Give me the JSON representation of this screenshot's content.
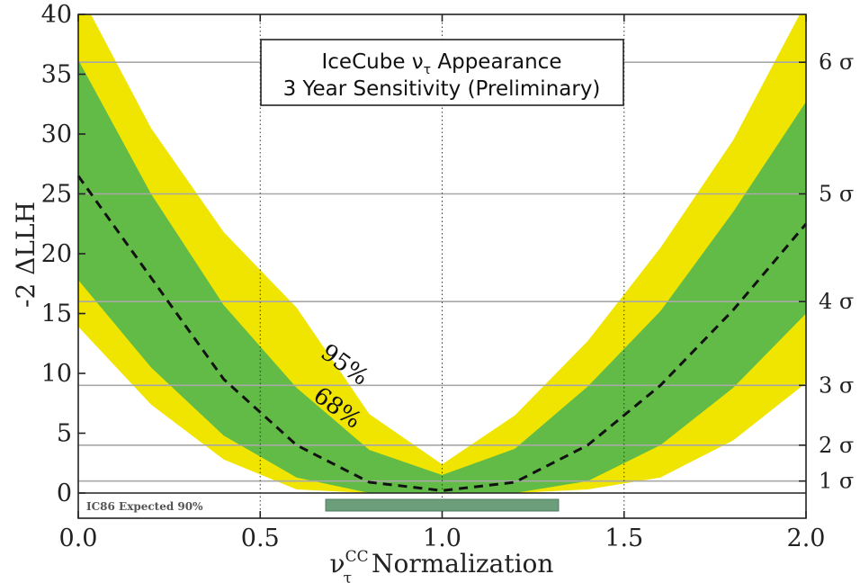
{
  "chart_data": {
    "type": "area",
    "title_line1": "IceCube ν",
    "title_sub": "τ",
    "title_line1_rest": " Appearance",
    "title_line2": "3 Year Sensitivity (Preliminary)",
    "xlabel_main": "ν",
    "xlabel_sup": "CC",
    "xlabel_sub": "τ",
    "xlabel_rest": "Normalization",
    "ylabel": "-2 ΔLLH",
    "xlim": [
      0.0,
      2.0
    ],
    "ylim": [
      0,
      40
    ],
    "xticks": [
      0.0,
      0.5,
      1.0,
      1.5,
      2.0
    ],
    "xtick_labels": [
      "0.0",
      "0.5",
      "1.0",
      "1.5",
      "2.0"
    ],
    "yticks": [
      0,
      5,
      10,
      15,
      20,
      25,
      30,
      35,
      40
    ],
    "ytick_labels": [
      "0",
      "5",
      "10",
      "15",
      "20",
      "25",
      "30",
      "35",
      "40"
    ],
    "vertical_gridlines": [
      0.5,
      1.0,
      1.5
    ],
    "sigma_levels": [
      {
        "value": 1,
        "label": "1 σ"
      },
      {
        "value": 4,
        "label": "2 σ"
      },
      {
        "value": 9,
        "label": "3 σ"
      },
      {
        "value": 16,
        "label": "4 σ"
      },
      {
        "value": 25,
        "label": "5 σ"
      },
      {
        "value": 36,
        "label": "6 σ"
      }
    ],
    "x": [
      0.0,
      0.2,
      0.4,
      0.6,
      0.8,
      1.0,
      1.2,
      1.4,
      1.6,
      1.8,
      2.0
    ],
    "series": [
      {
        "name": "95%",
        "color": "#f0e500",
        "lower": [
          13.9,
          7.4,
          2.8,
          0.3,
          0,
          0,
          0,
          0.3,
          1.3,
          4.4,
          9.2
        ],
        "upper": [
          42,
          30.5,
          21.8,
          15.5,
          6.6,
          2.4,
          6.5,
          12.7,
          20.5,
          29.5,
          41
        ]
      },
      {
        "name": "68%",
        "color": "#62bb46",
        "lower": [
          17.8,
          10.5,
          4.8,
          1.3,
          0,
          0,
          0,
          1.0,
          4.0,
          8.8,
          15.0
        ],
        "upper": [
          36.2,
          25.0,
          15.7,
          8.8,
          3.6,
          1.5,
          3.7,
          8.9,
          15.2,
          23.5,
          32.7
        ]
      }
    ],
    "median": {
      "values": [
        26.5,
        18.0,
        9.5,
        4.0,
        0.9,
        0.2,
        0.9,
        4.0,
        9.0,
        15.3,
        22.5
      ],
      "color": "#111111"
    },
    "band_labels": [
      {
        "text": "95%",
        "x": 0.72,
        "y": 10.2
      },
      {
        "text": "68%",
        "x": 0.7,
        "y": 6.6
      }
    ],
    "ic86_strip": {
      "label": "IC86 Expected 90%",
      "range": [
        0.68,
        1.32
      ],
      "color": "#6c9e7c"
    }
  }
}
